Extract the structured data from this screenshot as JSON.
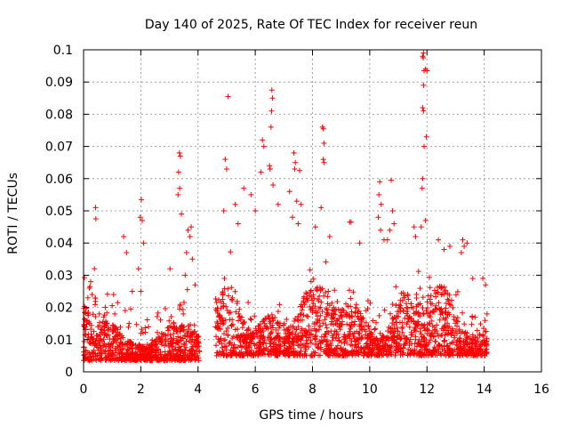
{
  "chart_data": {
    "type": "scatter",
    "title": "Day 140 of 2025, Rate Of TEC Index for receiver reun",
    "xlabel": "GPS time / hours",
    "ylabel": "ROTI / TECUs",
    "xlim": [
      0,
      16
    ],
    "ylim": [
      0,
      0.1
    ],
    "xticks": [
      "0",
      "2",
      "4",
      "6",
      "8",
      "10",
      "12",
      "14",
      "16"
    ],
    "yticks": [
      "0",
      "0.01",
      "0.02",
      "0.03",
      "0.04",
      "0.05",
      "0.06",
      "0.07",
      "0.08",
      "0.09",
      "0.1"
    ],
    "grid": true,
    "marker": "+",
    "color": "#ff0000",
    "data_gap": [
      4.05,
      4.6
    ],
    "data_range": [
      0.0,
      14.1
    ],
    "series": [
      {
        "points": [
          [
            0.42,
            0.051
          ],
          [
            0.43,
            0.0475
          ],
          [
            0.38,
            0.032
          ],
          [
            0.25,
            0.028
          ],
          [
            0.2,
            0.026
          ],
          [
            0.15,
            0.023
          ],
          [
            0.3,
            0.024
          ],
          [
            0.55,
            0.018
          ],
          [
            1.05,
            0.024
          ],
          [
            1.4,
            0.042
          ],
          [
            1.5,
            0.037
          ],
          [
            1.7,
            0.025
          ],
          [
            2.02,
            0.0535
          ],
          [
            1.98,
            0.048
          ],
          [
            2.05,
            0.047
          ],
          [
            2.1,
            0.04
          ],
          [
            1.92,
            0.032
          ],
          [
            2.0,
            0.025
          ],
          [
            3.02,
            0.032
          ],
          [
            3.35,
            0.068
          ],
          [
            3.38,
            0.067
          ],
          [
            3.32,
            0.062
          ],
          [
            3.36,
            0.057
          ],
          [
            3.3,
            0.055
          ],
          [
            3.42,
            0.049
          ],
          [
            3.65,
            0.044
          ],
          [
            3.72,
            0.042
          ],
          [
            3.76,
            0.045
          ],
          [
            3.6,
            0.037
          ],
          [
            3.8,
            0.035
          ],
          [
            3.55,
            0.03
          ],
          [
            3.9,
            0.027
          ],
          [
            5.05,
            0.0855
          ],
          [
            4.95,
            0.066
          ],
          [
            5.0,
            0.063
          ],
          [
            4.9,
            0.05
          ],
          [
            5.3,
            0.052
          ],
          [
            5.4,
            0.046
          ],
          [
            5.6,
            0.057
          ],
          [
            5.85,
            0.055
          ],
          [
            6.0,
            0.05
          ],
          [
            6.2,
            0.062
          ],
          [
            6.25,
            0.072
          ],
          [
            6.3,
            0.07
          ],
          [
            6.5,
            0.064
          ],
          [
            6.52,
            0.063
          ],
          [
            6.58,
            0.0875
          ],
          [
            6.6,
            0.085
          ],
          [
            6.57,
            0.081
          ],
          [
            6.55,
            0.076
          ],
          [
            6.62,
            0.058
          ],
          [
            6.8,
            0.052
          ],
          [
            7.35,
            0.068
          ],
          [
            7.4,
            0.065
          ],
          [
            7.38,
            0.063
          ],
          [
            7.55,
            0.0625
          ],
          [
            7.2,
            0.056
          ],
          [
            7.45,
            0.053
          ],
          [
            7.6,
            0.052
          ],
          [
            7.3,
            0.048
          ],
          [
            7.5,
            0.046
          ],
          [
            8.35,
            0.076
          ],
          [
            8.38,
            0.0755
          ],
          [
            8.4,
            0.071
          ],
          [
            8.38,
            0.066
          ],
          [
            8.4,
            0.065
          ],
          [
            8.3,
            0.051
          ],
          [
            8.1,
            0.045
          ],
          [
            8.6,
            0.042
          ],
          [
            9.3,
            0.0465
          ],
          [
            9.35,
            0.0465
          ],
          [
            9.65,
            0.04
          ],
          [
            10.35,
            0.059
          ],
          [
            10.32,
            0.055
          ],
          [
            10.4,
            0.052
          ],
          [
            10.3,
            0.048
          ],
          [
            10.38,
            0.044
          ],
          [
            10.5,
            0.041
          ],
          [
            10.75,
            0.0595
          ],
          [
            10.8,
            0.05
          ],
          [
            10.7,
            0.044
          ],
          [
            10.85,
            0.046
          ],
          [
            10.62,
            0.041
          ],
          [
            11.55,
            0.045
          ],
          [
            11.6,
            0.042
          ],
          [
            11.85,
            0.098
          ],
          [
            11.88,
            0.099
          ],
          [
            11.87,
            0.0975
          ],
          [
            11.95,
            0.094
          ],
          [
            12.0,
            0.0935
          ],
          [
            11.9,
            0.0935
          ],
          [
            11.88,
            0.089
          ],
          [
            11.85,
            0.082
          ],
          [
            11.88,
            0.081
          ],
          [
            11.98,
            0.073
          ],
          [
            11.9,
            0.07
          ],
          [
            11.85,
            0.06
          ],
          [
            11.83,
            0.057
          ],
          [
            11.95,
            0.047
          ],
          [
            11.8,
            0.045
          ],
          [
            12.4,
            0.041
          ],
          [
            12.6,
            0.038
          ],
          [
            12.8,
            0.039
          ],
          [
            13.25,
            0.041
          ],
          [
            13.3,
            0.039
          ],
          [
            13.2,
            0.037
          ],
          [
            13.4,
            0.04
          ],
          [
            13.6,
            0.029
          ],
          [
            13.95,
            0.029
          ],
          [
            14.05,
            0.027
          ],
          [
            14.1,
            0.018
          ]
        ]
      }
    ]
  }
}
